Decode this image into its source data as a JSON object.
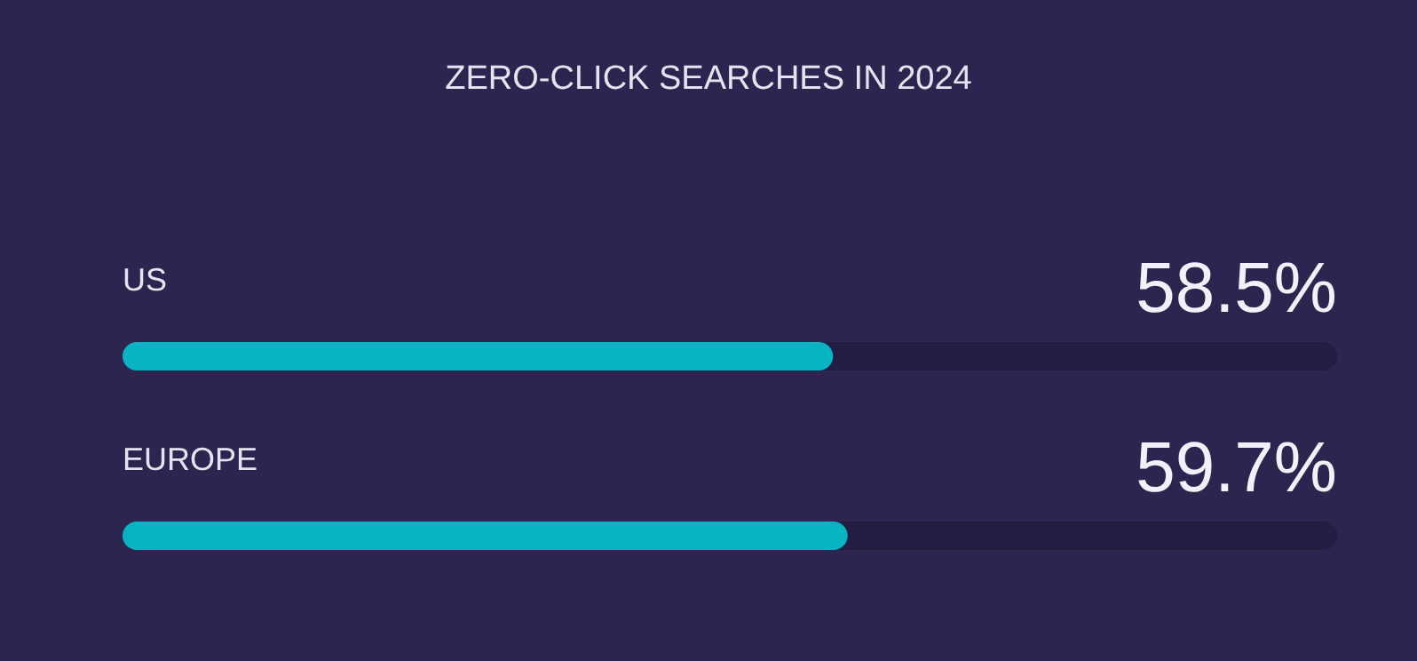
{
  "chart_data": {
    "type": "bar",
    "orientation": "horizontal",
    "title": "ZERO-CLICK SEARCHES IN 2024",
    "categories": [
      "US",
      "EUROPE"
    ],
    "series": [
      {
        "color": "#08b4c4",
        "values": [
          58.5,
          59.7
        ],
        "value_labels": [
          "58.5%",
          "59.7%"
        ]
      }
    ],
    "xlim": [
      0,
      100
    ],
    "tick_labels": false
  }
}
